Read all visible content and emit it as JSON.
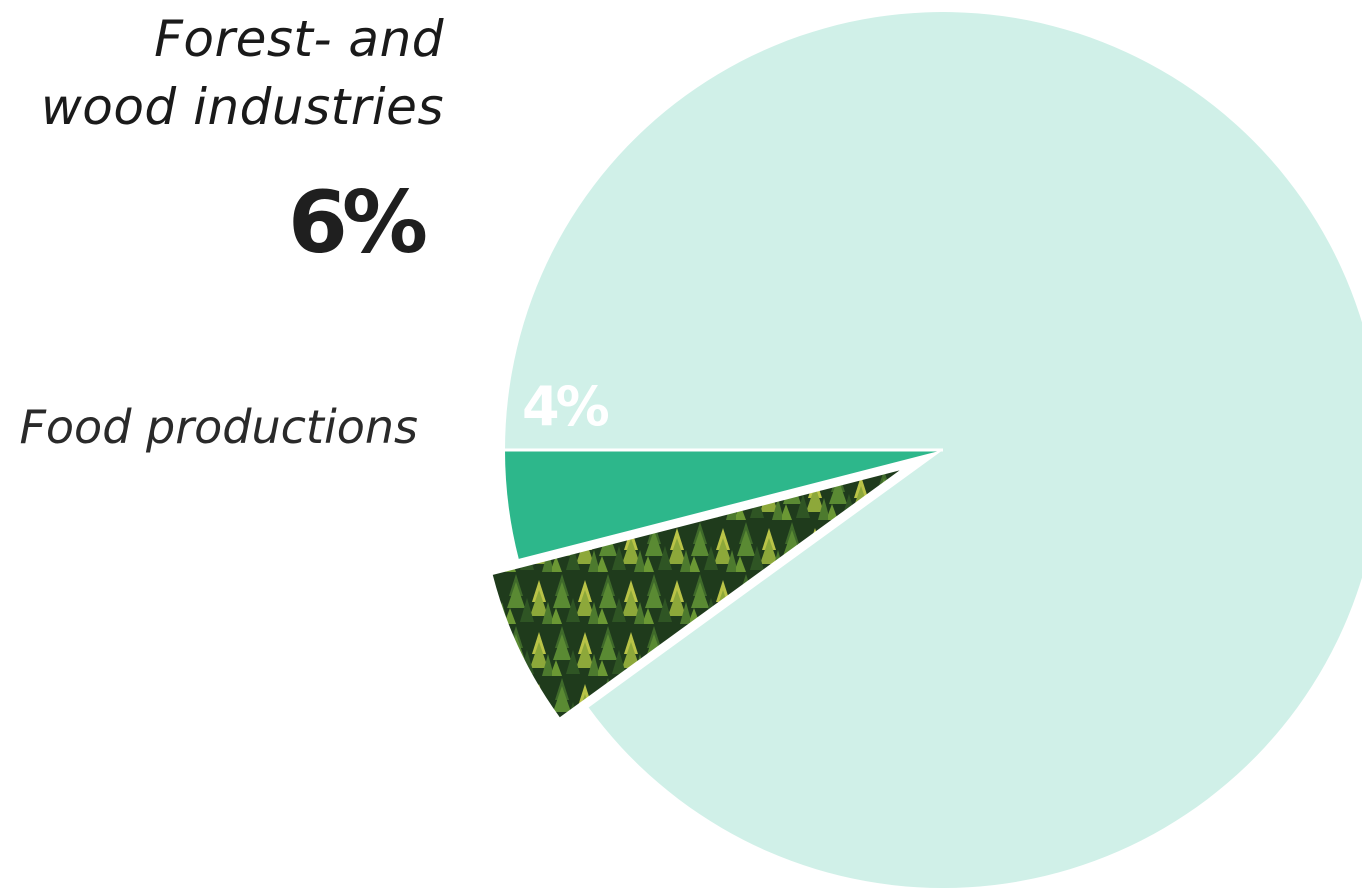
{
  "chart_data": {
    "type": "pie",
    "slices": [
      {
        "label": "Forest- and wood industries",
        "label_lines": [
          "Forest- and",
          "wood industries"
        ],
        "value": 6,
        "display": "6%",
        "exploded": true,
        "fill": "forest-photo"
      },
      {
        "label": "Food productions",
        "label_lines": [
          "Food productions"
        ],
        "value": 4,
        "display": "4%",
        "exploded": false,
        "fill": "#2db78b"
      },
      {
        "label": "",
        "label_lines": [],
        "value": 90,
        "display": "",
        "exploded": false,
        "fill": "#d0f0e8"
      }
    ],
    "legend": "none",
    "colors": {
      "rest": "#d0f0e8",
      "food": "#2db78b",
      "forest_dark": "#1e3a1e",
      "forest_light": "#c8d048"
    }
  }
}
